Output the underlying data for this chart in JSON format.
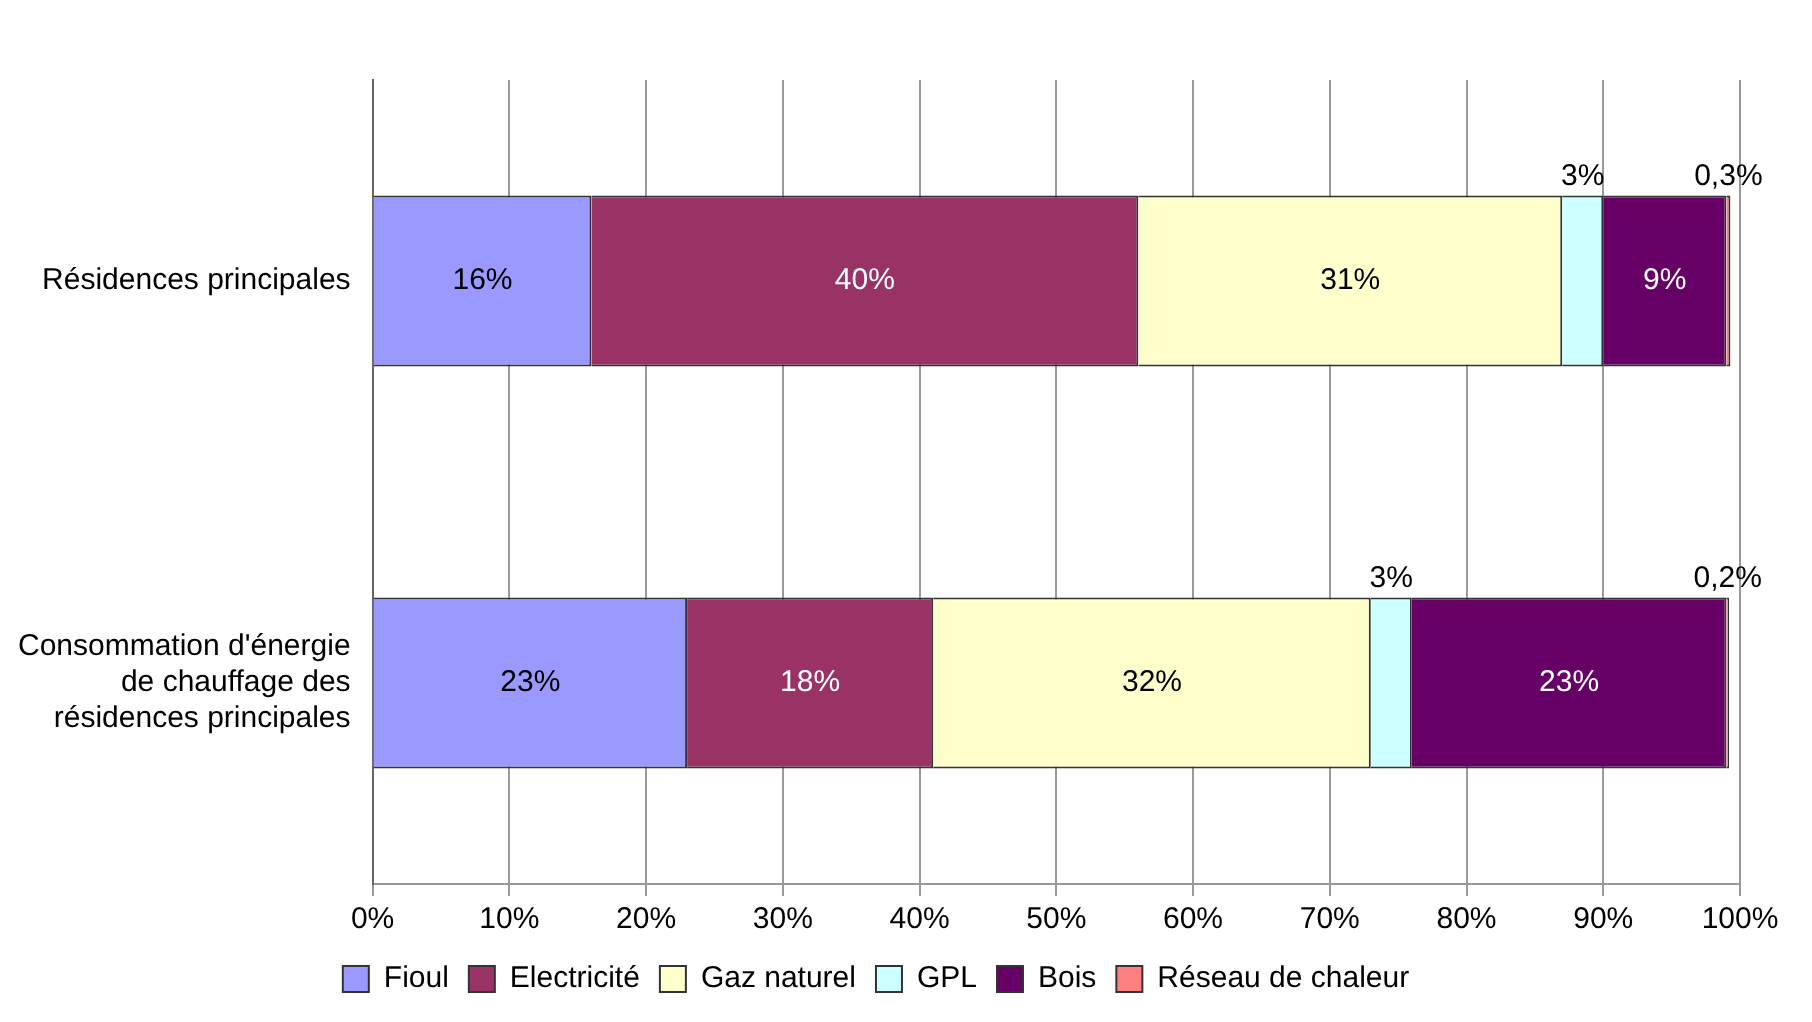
{
  "chart_data": {
    "type": "bar",
    "orientation": "horizontal",
    "stacked": true,
    "categories": [
      "Résidences principales",
      "Consommation d'énergie de chauffage des résidences principales"
    ],
    "series": [
      {
        "name": "Fioul",
        "color": "#9999ff",
        "values": [
          16,
          23
        ],
        "value_labels": [
          "16%",
          "23%"
        ]
      },
      {
        "name": "Electricité",
        "color": "#993366",
        "values": [
          40,
          18
        ],
        "value_labels": [
          "40%",
          "18%"
        ]
      },
      {
        "name": "Gaz naturel",
        "color": "#ffffcc",
        "values": [
          31,
          32
        ],
        "value_labels": [
          "31%",
          "32%"
        ]
      },
      {
        "name": "GPL",
        "color": "#ccffff",
        "values": [
          3,
          3
        ],
        "value_labels": [
          "3%",
          "3%"
        ]
      },
      {
        "name": "Bois",
        "color": "#660066",
        "values": [
          9,
          23
        ],
        "value_labels": [
          "9%",
          "23%"
        ]
      },
      {
        "name": "Réseau de chaleur",
        "color": "#ff8080",
        "values": [
          0.3,
          0.2
        ],
        "value_labels": [
          "0,3%",
          "0,2%"
        ]
      }
    ],
    "xlim": [
      0,
      100
    ],
    "xticks": [
      {
        "value": 0,
        "label": "0%"
      },
      {
        "value": 10,
        "label": "10%"
      },
      {
        "value": 20,
        "label": "20%"
      },
      {
        "value": 30,
        "label": "30%"
      },
      {
        "value": 40,
        "label": "40%"
      },
      {
        "value": 50,
        "label": "50%"
      },
      {
        "value": 60,
        "label": "60%"
      },
      {
        "value": 70,
        "label": "70%"
      },
      {
        "value": 80,
        "label": "80%"
      },
      {
        "value": 90,
        "label": "90%"
      },
      {
        "value": 100,
        "label": "100%"
      }
    ],
    "grid": "x",
    "legend": "bottom"
  }
}
